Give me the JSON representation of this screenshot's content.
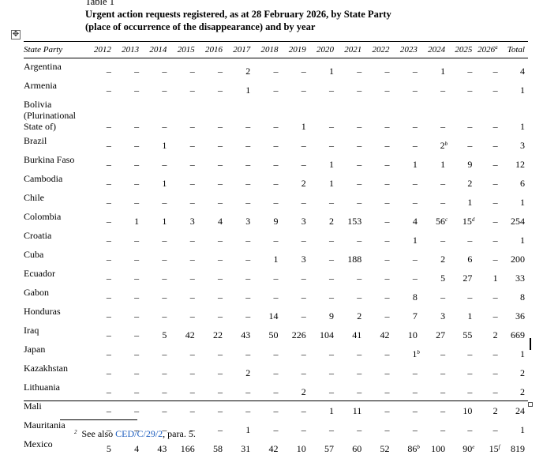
{
  "title": {
    "line1": "Table 1",
    "line2": "Urgent action requests registered, as at 28 February 2026, by State Party",
    "line3": "(place of occurrence of the disappearance) and by year"
  },
  "table": {
    "columns": [
      "State Party",
      "2012",
      "2013",
      "2014",
      "2015",
      "2016",
      "2017",
      "2018",
      "2019",
      "2020",
      "2021",
      "2022",
      "2023",
      "2024",
      "2025",
      "2026",
      "Total"
    ],
    "column_marks": {
      "2026": "a"
    },
    "rows": [
      {
        "state": "Argentina",
        "values": [
          "–",
          "–",
          "–",
          "–",
          "–",
          "2",
          "–",
          "–",
          "1",
          "–",
          "–",
          "–",
          "1",
          "–",
          "–",
          "4"
        ]
      },
      {
        "state": "Armenia",
        "values": [
          "–",
          "–",
          "–",
          "–",
          "–",
          "1",
          "–",
          "–",
          "–",
          "–",
          "–",
          "–",
          "–",
          "–",
          "–",
          "1"
        ]
      },
      {
        "state": "Bolivia (Plurinational State of)",
        "state_lines": [
          "Bolivia",
          "(Plurinational",
          "State of)"
        ],
        "values": [
          "–",
          "–",
          "–",
          "–",
          "–",
          "–",
          "–",
          "1",
          "–",
          "–",
          "–",
          "–",
          "–",
          "–",
          "–",
          "1"
        ]
      },
      {
        "state": "Brazil",
        "values": [
          "–",
          "–",
          "1",
          "–",
          "–",
          "–",
          "–",
          "–",
          "–",
          "–",
          "–",
          "–",
          "2",
          "–",
          "–",
          "3"
        ],
        "marks": {
          "12": "b"
        }
      },
      {
        "state": "Burkina Faso",
        "values": [
          "–",
          "–",
          "–",
          "–",
          "–",
          "–",
          "–",
          "–",
          "1",
          "–",
          "–",
          "1",
          "1",
          "9",
          "–",
          "12"
        ]
      },
      {
        "state": "Cambodia",
        "values": [
          "–",
          "–",
          "1",
          "–",
          "–",
          "–",
          "–",
          "2",
          "1",
          "–",
          "–",
          "–",
          "–",
          "2",
          "–",
          "6"
        ]
      },
      {
        "state": "Chile",
        "values": [
          "–",
          "–",
          "–",
          "–",
          "–",
          "–",
          "–",
          "–",
          "–",
          "–",
          "–",
          "–",
          "–",
          "1",
          "–",
          "1"
        ]
      },
      {
        "state": "Colombia",
        "values": [
          "–",
          "1",
          "1",
          "3",
          "4",
          "3",
          "9",
          "3",
          "2",
          "153",
          "–",
          "4",
          "56",
          "15",
          "–",
          "254"
        ],
        "marks": {
          "12": "c",
          "13": "d"
        }
      },
      {
        "state": "Croatia",
        "values": [
          "–",
          "–",
          "–",
          "–",
          "–",
          "–",
          "–",
          "–",
          "–",
          "–",
          "–",
          "1",
          "–",
          "–",
          "–",
          "1"
        ]
      },
      {
        "state": "Cuba",
        "values": [
          "–",
          "–",
          "–",
          "–",
          "–",
          "–",
          "1",
          "3",
          "–",
          "188",
          "–",
          "–",
          "2",
          "6",
          "–",
          "200"
        ]
      },
      {
        "state": "Ecuador",
        "values": [
          "–",
          "–",
          "–",
          "–",
          "–",
          "–",
          "–",
          "–",
          "–",
          "–",
          "–",
          "–",
          "5",
          "27",
          "1",
          "33"
        ]
      },
      {
        "state": "Gabon",
        "values": [
          "–",
          "–",
          "–",
          "–",
          "–",
          "–",
          "–",
          "–",
          "–",
          "–",
          "–",
          "8",
          "–",
          "–",
          "–",
          "8"
        ]
      },
      {
        "state": "Honduras",
        "values": [
          "–",
          "–",
          "–",
          "–",
          "–",
          "–",
          "14",
          "–",
          "9",
          "2",
          "–",
          "7",
          "3",
          "1",
          "–",
          "36"
        ]
      },
      {
        "state": "Iraq",
        "values": [
          "–",
          "–",
          "5",
          "42",
          "22",
          "43",
          "50",
          "226",
          "104",
          "41",
          "42",
          "10",
          "27",
          "55",
          "2",
          "669"
        ]
      },
      {
        "state": "Japan",
        "values": [
          "–",
          "–",
          "–",
          "–",
          "–",
          "–",
          "–",
          "–",
          "–",
          "–",
          "–",
          "1",
          "–",
          "–",
          "–",
          "1"
        ],
        "marks": {
          "11": "b"
        }
      },
      {
        "state": "Kazakhstan",
        "values": [
          "–",
          "–",
          "–",
          "–",
          "–",
          "2",
          "–",
          "–",
          "–",
          "–",
          "–",
          "–",
          "–",
          "–",
          "–",
          "2"
        ]
      },
      {
        "state": "Lithuania",
        "values": [
          "–",
          "–",
          "–",
          "–",
          "–",
          "–",
          "–",
          "2",
          "–",
          "–",
          "–",
          "–",
          "–",
          "–",
          "–",
          "2"
        ]
      },
      {
        "state": "Mali",
        "values": [
          "–",
          "–",
          "–",
          "–",
          "–",
          "–",
          "–",
          "–",
          "1",
          "11",
          "–",
          "–",
          "–",
          "10",
          "2",
          "24"
        ]
      },
      {
        "state": "Mauritania",
        "values": [
          "–",
          "–",
          "–",
          "–",
          "–",
          "1",
          "–",
          "–",
          "–",
          "–",
          "–",
          "–",
          "–",
          "–",
          "–",
          "1"
        ]
      },
      {
        "state": "Mexico",
        "values": [
          "5",
          "4",
          "43",
          "166",
          "58",
          "31",
          "42",
          "10",
          "57",
          "60",
          "52",
          "86",
          "100",
          "90",
          "15",
          "819"
        ],
        "marks": {
          "11": "b",
          "13": "e",
          "14": "f"
        }
      }
    ]
  },
  "footnote": {
    "number": "2",
    "prefix": "See also ",
    "link": "CED/C/29/2",
    "suffix": ", para. 5."
  },
  "icons": {
    "move_handle": "move-arrows-icon"
  }
}
